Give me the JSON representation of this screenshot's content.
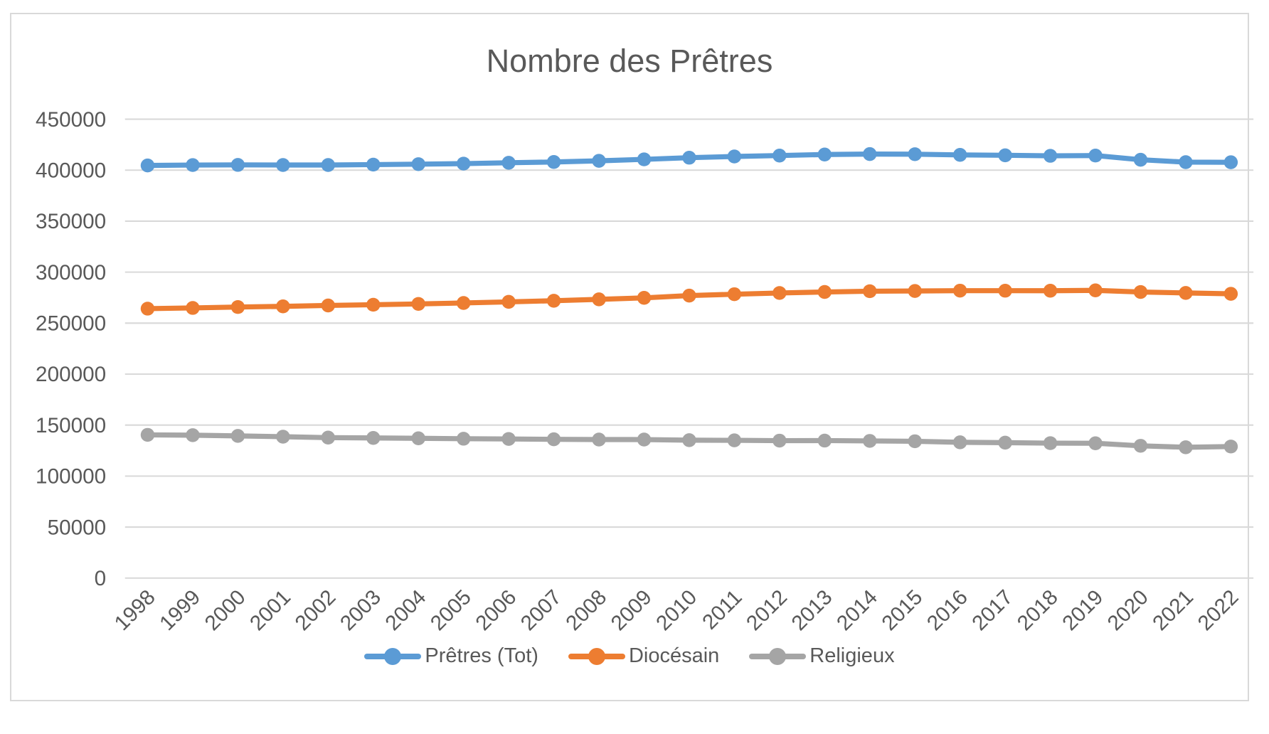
{
  "chart": {
    "background_color": "#FFFFFF",
    "frame_border_color": "#D9D9D9",
    "text_color": "#595959",
    "gridline_color": "#D9D9D9"
  },
  "chart_data": {
    "type": "line",
    "title": "Nombre des Prêtres",
    "xlabel": "",
    "ylabel": "",
    "categories": [
      "1998",
      "1999",
      "2000",
      "2001",
      "2002",
      "2003",
      "2004",
      "2005",
      "2006",
      "2007",
      "2008",
      "2009",
      "2010",
      "2011",
      "2012",
      "2013",
      "2014",
      "2015",
      "2016",
      "2017",
      "2018",
      "2019",
      "2020",
      "2021",
      "2022"
    ],
    "series": [
      {
        "name": "Prêtres (Tot)",
        "color": "#5B9BD5",
        "values": [
          404626,
          405009,
          405178,
          405067,
          405058,
          405450,
          405891,
          406411,
          407262,
          408024,
          409166,
          410593,
          412236,
          413418,
          414313,
          415348,
          415792,
          415656,
          414969,
          414582,
          414065,
          414336,
          410219,
          407872,
          407730
        ]
      },
      {
        "name": "Diocésain",
        "color": "#ED7D31",
        "values": [
          264202,
          264900,
          265781,
          266448,
          267334,
          268041,
          268837,
          269762,
          270855,
          271953,
          273332,
          274777,
          277009,
          278346,
          279561,
          280532,
          281297,
          281514,
          281831,
          281810,
          281766,
          282136,
          280521,
          279610,
          278742
        ]
      },
      {
        "name": "Religieux",
        "color": "#A5A5A5",
        "values": [
          140424,
          140109,
          139397,
          138619,
          137724,
          137409,
          137054,
          136649,
          136407,
          136071,
          135834,
          135816,
          135227,
          135072,
          134752,
          134816,
          134495,
          134142,
          133138,
          132772,
          132299,
          132200,
          129698,
          128262,
          128988
        ]
      }
    ],
    "ylim": [
      0,
      450000
    ],
    "ytick_step": 50000,
    "ytick_labels": [
      "0",
      "50000",
      "100000",
      "150000",
      "200000",
      "250000",
      "300000",
      "350000",
      "400000",
      "450000"
    ],
    "xtick_rotation_deg": 45,
    "grid": true,
    "legend_position": "bottom",
    "marker": "circle"
  }
}
